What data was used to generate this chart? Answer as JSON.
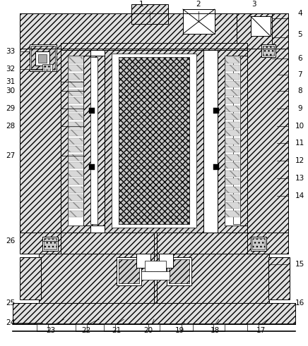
{
  "fig_width": 4.36,
  "fig_height": 4.91,
  "dpi": 100,
  "bg_color": "#ffffff",
  "line_color": "#000000",
  "line_width": 0.7,
  "label_fontsize": 7.5
}
